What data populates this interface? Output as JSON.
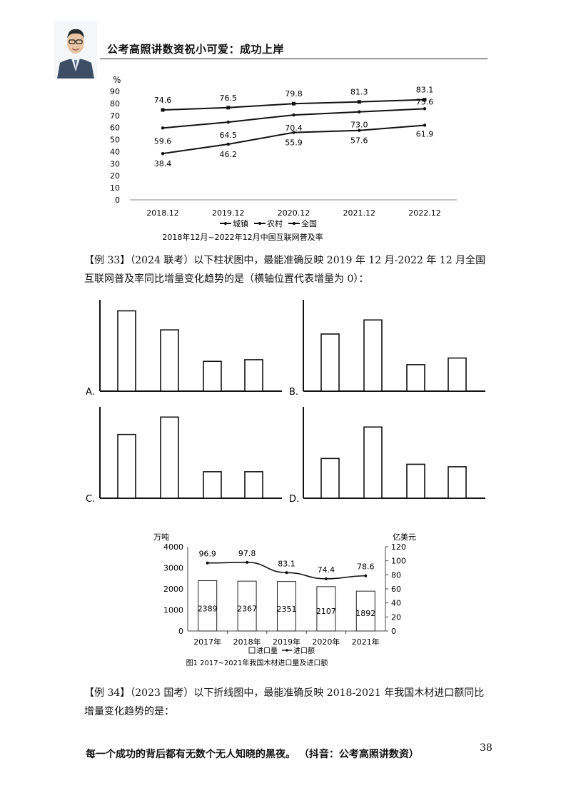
{
  "header": {
    "title": "公考高照讲数资祝小可爱：成功上岸"
  },
  "chart1": {
    "chart_data": {
      "type": "line",
      "title": "2018年12月~2022年12月中国互联网普及率",
      "ylabel": "%",
      "ylim": [
        0,
        90
      ],
      "yticks": [
        "0",
        "10",
        "20",
        "30",
        "40",
        "50",
        "60",
        "70",
        "80",
        "90"
      ],
      "categories": [
        "2018.12",
        "2019.12",
        "2020.12",
        "2021.12",
        "2022.12"
      ],
      "series": [
        {
          "name": "城镇",
          "values": [
            74.6,
            76.5,
            79.8,
            81.3,
            83.1
          ],
          "marker": "square",
          "labels": [
            "74.6",
            "76.5",
            "79.8",
            "81.3",
            "83.1"
          ]
        },
        {
          "name": "农村",
          "values": [
            38.4,
            46.2,
            55.9,
            57.6,
            61.9
          ],
          "marker": "dot",
          "labels": [
            "38.4",
            "46.2",
            "55.9",
            "57.6",
            "61.9"
          ]
        },
        {
          "name": "全国",
          "values": [
            59.6,
            64.5,
            70.4,
            73.0,
            75.6
          ],
          "marker": "dot",
          "labels": [
            "59.6",
            "64.5",
            "70.4",
            "73.0",
            "75.6"
          ]
        }
      ],
      "legend_position": "bottom"
    }
  },
  "example33": {
    "text": "【例 33】（2024 联考）以下柱状图中，最能准确反映 2019 年 12 月-2022 年 12 月全国互联网普及率同比增量变化趋势的是（横轴位置代表增量为 0）："
  },
  "options": [
    {
      "label": "A.",
      "values": [
        0.97,
        0.74,
        0.36,
        0.38
      ]
    },
    {
      "label": "B.",
      "values": [
        0.69,
        0.86,
        0.32,
        0.4
      ]
    },
    {
      "label": "C.",
      "values": [
        0.77,
        0.98,
        0.32,
        0.32
      ]
    },
    {
      "label": "D.",
      "values": [
        0.48,
        0.86,
        0.41,
        0.38
      ]
    }
  ],
  "chart2": {
    "chart_data": {
      "type": "bar",
      "title": "图1  2017~2021年我国木材进口量及进口额",
      "categories": [
        "2017年",
        "2018年",
        "2019年",
        "2020年",
        "2021年"
      ],
      "left_unit": "万吨",
      "right_unit": "亿美元",
      "left_ylim": [
        0,
        4000
      ],
      "left_yticks": [
        "0",
        "1000",
        "2000",
        "3000",
        "4000"
      ],
      "right_ylim": [
        0,
        120
      ],
      "right_yticks": [
        "0",
        "20",
        "40",
        "60",
        "80",
        "100",
        "120"
      ],
      "series": [
        {
          "name": "进口量",
          "type": "bar",
          "axis": "left",
          "values": [
            2389,
            2367,
            2351,
            2107,
            1892
          ],
          "labels": [
            "2389",
            "2367",
            "2351",
            "2107",
            "1892"
          ]
        },
        {
          "name": "进口额",
          "type": "line",
          "axis": "right",
          "values": [
            96.9,
            97.8,
            83.1,
            74.4,
            78.6
          ],
          "labels": [
            "96.9",
            "97.8",
            "83.1",
            "74.4",
            "78.6"
          ]
        }
      ],
      "legend_position": "bottom"
    }
  },
  "example34": {
    "text": "【例 34】（2023 国考）以下折线图中，最能准确反映 2018-2021 年我国木材进口额同比增量变化趋势的是："
  },
  "footer": {
    "motto": "每一个成功的背后都有无数个无人知晓的黑夜。 （抖音：公考高照讲数资）",
    "page_number": "38"
  }
}
